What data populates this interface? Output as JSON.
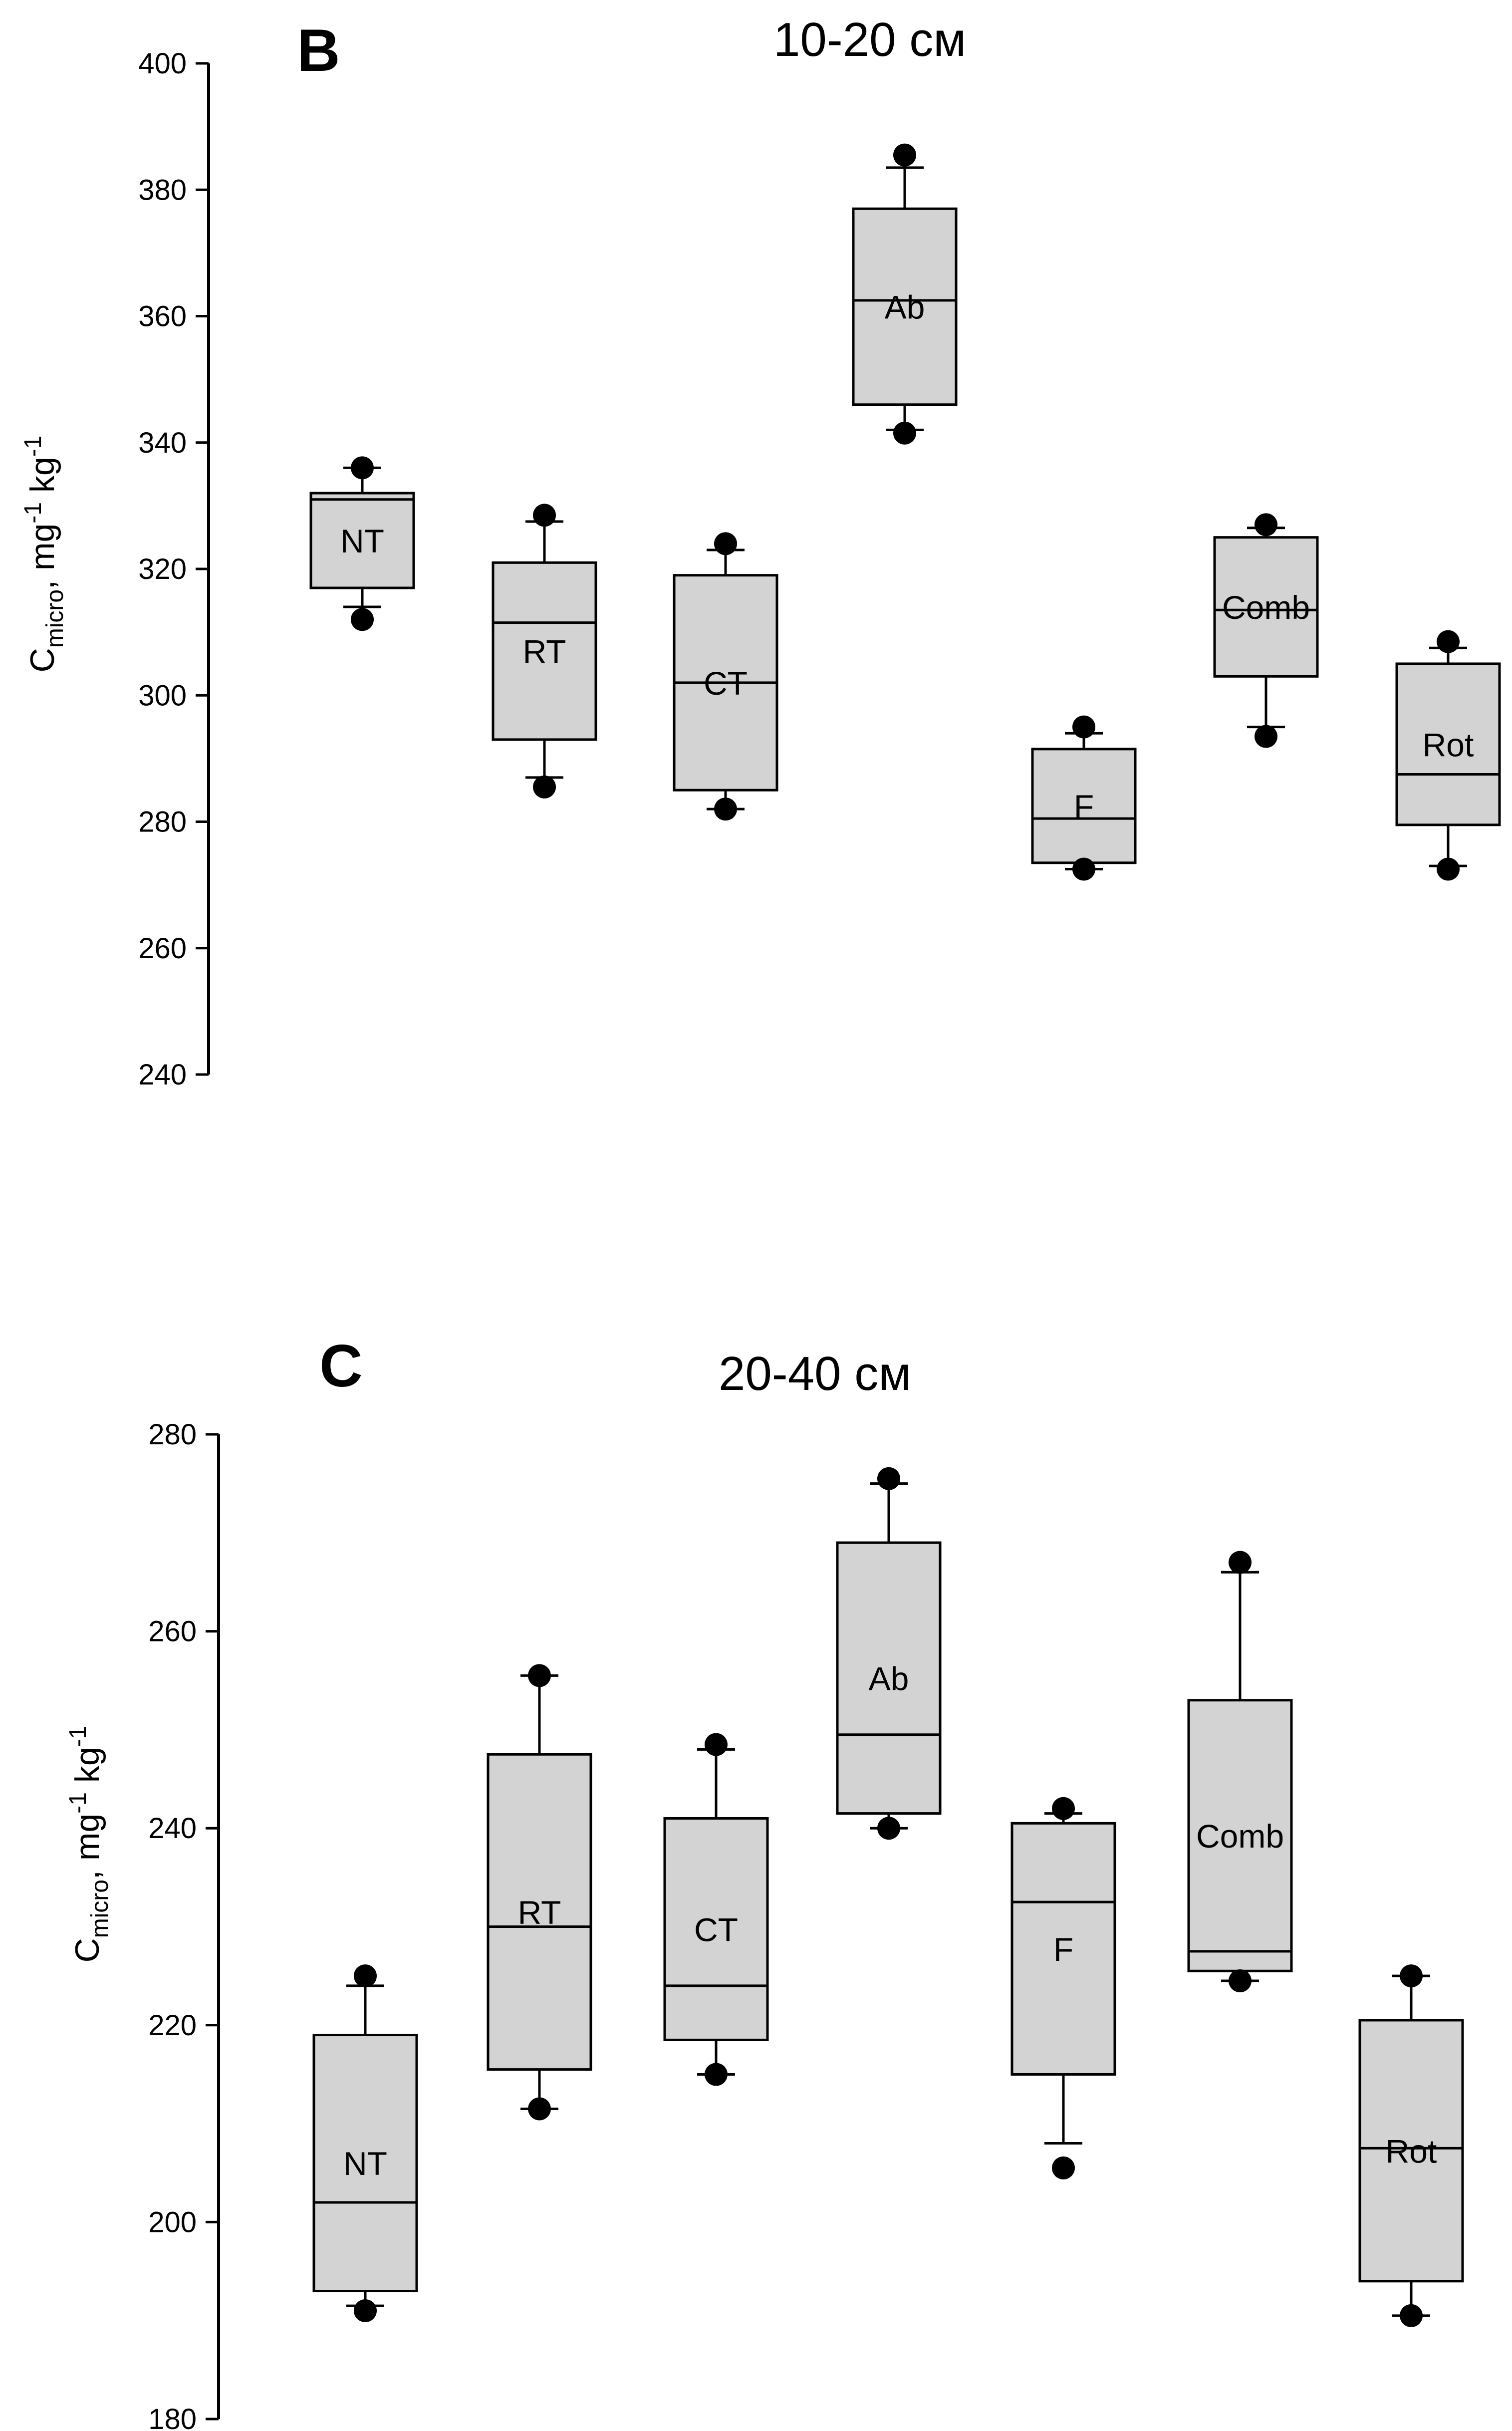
{
  "chart_data": [
    {
      "type": "boxplot",
      "panel": "B",
      "title": "10-20 см",
      "ylabel": {
        "symbol": "C",
        "subscript": "micro",
        "units_a": ", mg",
        "exp_a": "-1",
        "units_b": " kg",
        "exp_b": "-1"
      },
      "ylim": [
        240,
        400
      ],
      "yticks": [
        240,
        260,
        280,
        300,
        320,
        340,
        360,
        380,
        400
      ],
      "categories": [
        "NT",
        "RT",
        "CT",
        "Ab",
        "F",
        "Comb",
        "Rot"
      ],
      "boxes": [
        {
          "label": "NT",
          "whisker_low": 314,
          "q1": 317,
          "median": 331,
          "q3": 332,
          "whisker_high": 336,
          "outliers": [
            312,
            336
          ]
        },
        {
          "label": "RT",
          "whisker_low": 287,
          "q1": 293,
          "median": 311.5,
          "q3": 321,
          "whisker_high": 327.5,
          "outliers": [
            285.5,
            328.5
          ]
        },
        {
          "label": "CT",
          "whisker_low": 282,
          "q1": 285,
          "median": 302,
          "q3": 319,
          "whisker_high": 323,
          "outliers": [
            282,
            324
          ]
        },
        {
          "label": "Ab",
          "whisker_low": 342,
          "q1": 346,
          "median": 362.5,
          "q3": 377,
          "whisker_high": 383.5,
          "outliers": [
            341.5,
            385.5
          ]
        },
        {
          "label": "F",
          "whisker_low": 272.5,
          "q1": 273.5,
          "median": 280.5,
          "q3": 291.5,
          "whisker_high": 294,
          "outliers": [
            272.5,
            295
          ]
        },
        {
          "label": "Comb",
          "whisker_low": 295,
          "q1": 303,
          "median": 313.5,
          "q3": 325,
          "whisker_high": 326.5,
          "outliers": [
            293.5,
            327
          ]
        },
        {
          "label": "Rot",
          "whisker_low": 273,
          "q1": 279.5,
          "median": 287.5,
          "q3": 305,
          "whisker_high": 307.5,
          "outliers": [
            272.5,
            308.5
          ]
        }
      ]
    },
    {
      "type": "boxplot",
      "panel": "C",
      "title": "20-40 см",
      "ylabel": {
        "symbol": "C",
        "subscript": "micro",
        "units_a": ", mg",
        "exp_a": "-1",
        "units_b": " kg",
        "exp_b": "-1"
      },
      "ylim": [
        180,
        280
      ],
      "yticks": [
        180,
        200,
        220,
        240,
        260,
        280
      ],
      "categories": [
        "NT",
        "RT",
        "CT",
        "Ab",
        "F",
        "Comb",
        "Rot"
      ],
      "boxes": [
        {
          "label": "NT",
          "whisker_low": 191.5,
          "q1": 193,
          "median": 202,
          "q3": 219,
          "whisker_high": 224,
          "outliers": [
            191,
            225
          ]
        },
        {
          "label": "RT",
          "whisker_low": 211.5,
          "q1": 215.5,
          "median": 230,
          "q3": 247.5,
          "whisker_high": 255.5,
          "outliers": [
            211.5,
            255.5
          ]
        },
        {
          "label": "CT",
          "whisker_low": 215,
          "q1": 218.5,
          "median": 224,
          "q3": 241,
          "whisker_high": 248,
          "outliers": [
            215,
            248.5
          ]
        },
        {
          "label": "Ab",
          "whisker_low": 240,
          "q1": 241.5,
          "median": 249.5,
          "q3": 269,
          "whisker_high": 275,
          "outliers": [
            240,
            275.5
          ]
        },
        {
          "label": "F",
          "whisker_low": 208,
          "q1": 215,
          "median": 232.5,
          "q3": 240.5,
          "whisker_high": 241.5,
          "outliers": [
            205.5,
            242
          ]
        },
        {
          "label": "Comb",
          "whisker_low": 224.5,
          "q1": 225.5,
          "median": 227.5,
          "q3": 253,
          "whisker_high": 266,
          "outliers": [
            224.5,
            267
          ]
        },
        {
          "label": "Rot",
          "whisker_low": 190.5,
          "q1": 194,
          "median": 207.5,
          "q3": 220.5,
          "whisker_high": 225,
          "outliers": [
            190.5,
            225
          ]
        }
      ]
    }
  ],
  "colors": {
    "box_fill": "#d3d3d3",
    "stroke": "#000000",
    "background": "#ffffff"
  }
}
